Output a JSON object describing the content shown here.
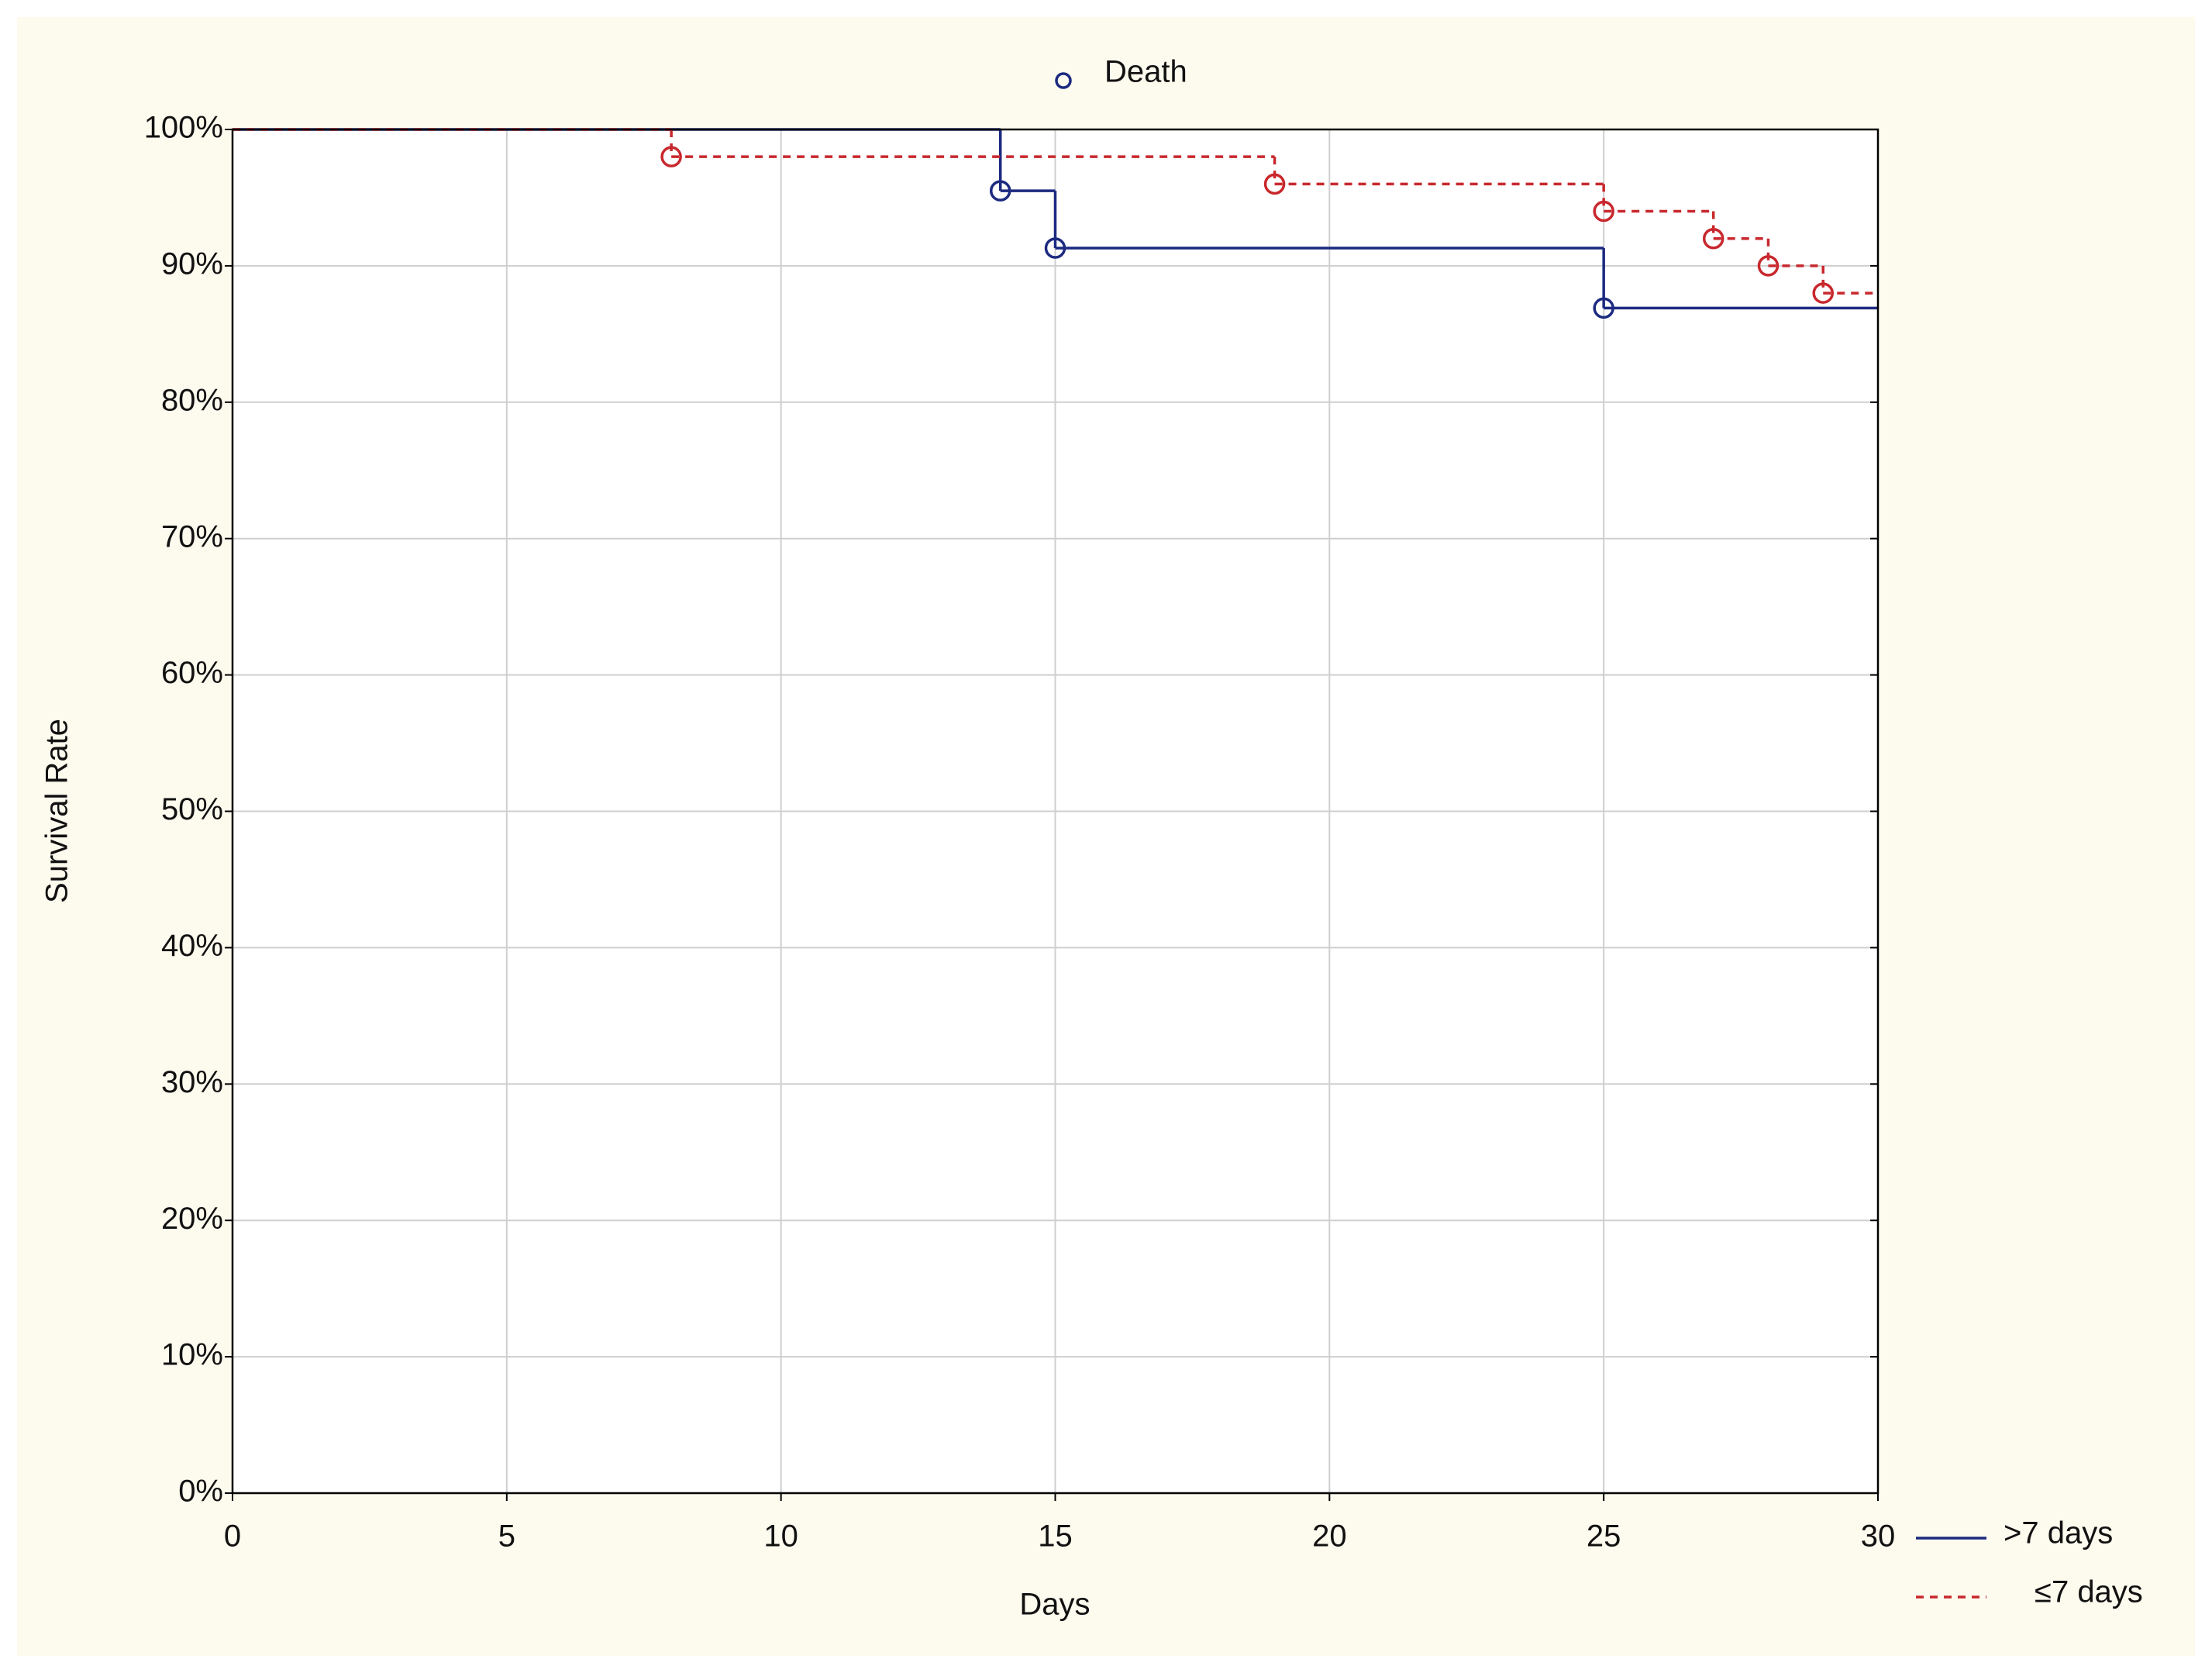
{
  "chart_data": {
    "type": "survival-step",
    "xlabel": "Days",
    "ylabel": "Survival Rate",
    "marker_legend": "Death",
    "xlim": [
      0,
      30
    ],
    "xticks": [
      0,
      5,
      10,
      15,
      20,
      25,
      30
    ],
    "ylim": [
      0,
      100
    ],
    "yticks": [
      {
        "value": 0,
        "label": "0%"
      },
      {
        "value": 10,
        "label": "10%"
      },
      {
        "value": 20,
        "label": "20%"
      },
      {
        "value": 30,
        "label": "30%"
      },
      {
        "value": 40,
        "label": "40%"
      },
      {
        "value": 50,
        "label": "50%"
      },
      {
        "value": 60,
        "label": "60%"
      },
      {
        "value": 70,
        "label": "70%"
      },
      {
        "value": 80,
        "label": "80%"
      },
      {
        "value": 90,
        "label": "90%"
      },
      {
        "value": 100,
        "label": "100%"
      }
    ],
    "grid": true,
    "series": [
      {
        "name": ">7 days",
        "color": "#1c2a80",
        "dash": false,
        "x": [
          0,
          14,
          15,
          25
        ],
        "values": [
          100,
          95.5,
          91.3,
          86.9
        ]
      },
      {
        "name": "≤7 days",
        "color": "#c8282d",
        "dash": true,
        "x": [
          0,
          8,
          19,
          25,
          27,
          28,
          29
        ],
        "values": [
          100,
          98,
          96,
          94,
          92,
          90,
          88
        ]
      }
    ]
  }
}
